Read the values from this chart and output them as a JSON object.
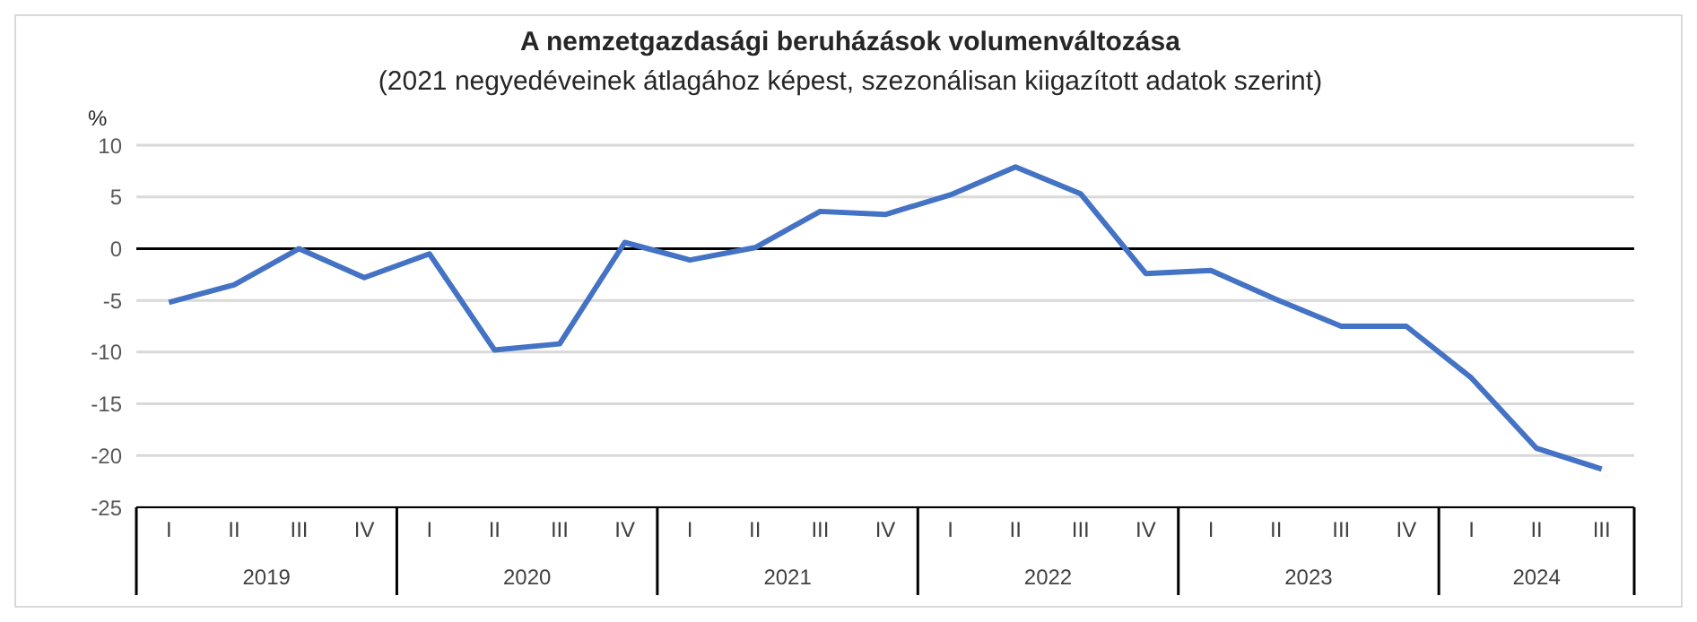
{
  "chart_data": {
    "type": "line",
    "title": "A nemzetgazdasági beruházások volumenváltozása",
    "subtitle": "(2021 negyedéveinek átlagához képest, szezonálisan kiigazított adatok szerint)",
    "ylabel": "%",
    "categories": [
      "I",
      "II",
      "III",
      "IV",
      "I",
      "II",
      "III",
      "IV",
      "I",
      "II",
      "III",
      "IV",
      "I",
      "II",
      "III",
      "IV",
      "I",
      "II",
      "III",
      "IV",
      "I",
      "II",
      "III"
    ],
    "series": [
      {
        "color": "#4472c4",
        "values": [
          -5.2,
          -3.5,
          0,
          -2.8,
          -0.5,
          -9.8,
          -9.2,
          0.6,
          -1.1,
          0.1,
          3.6,
          3.3,
          5.2,
          7.9,
          5.3,
          -2.4,
          -2.1,
          -4.9,
          -7.5,
          -7.5,
          -12.5,
          -19.3,
          -21.3
        ]
      }
    ],
    "annotations": [
      "2019",
      "2020",
      "2021",
      "2022",
      "2023",
      "2024"
    ],
    "ylim": [
      -25,
      10
    ],
    "yticks": [
      -25,
      -20,
      -15,
      -10,
      -5,
      0,
      5,
      10
    ],
    "grid": "y",
    "legend": false,
    "marker": "none",
    "line_style": "solid",
    "ref_lines": [
      {
        "axis": "y",
        "value": 0,
        "color": "#000000"
      }
    ]
  }
}
